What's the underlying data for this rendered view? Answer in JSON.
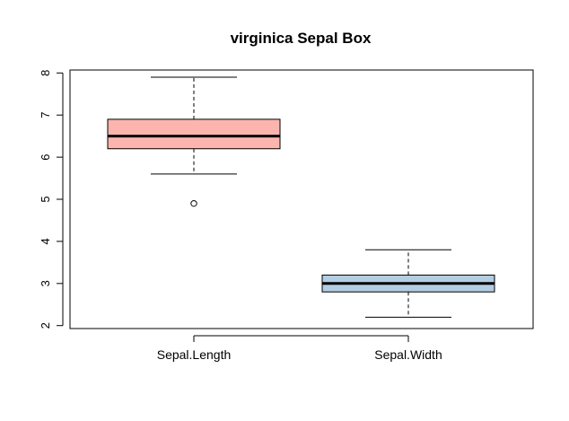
{
  "chart_data": {
    "type": "box",
    "title": "virginica Sepal Box",
    "xlabel": "",
    "ylabel": "",
    "ylim": [
      1.93,
      8.07
    ],
    "yticks": [
      2,
      3,
      4,
      5,
      6,
      7,
      8
    ],
    "grid": false,
    "legend": "none",
    "categories": [
      "Sepal.Length",
      "Sepal.Width"
    ],
    "boxes": [
      {
        "name": "Sepal.Length",
        "color": "#FBB4AE",
        "whisker_low": 5.6,
        "q1": 6.2,
        "median": 6.5,
        "q3": 6.9,
        "whisker_high": 7.9,
        "outliers": [
          4.9
        ]
      },
      {
        "name": "Sepal.Width",
        "color": "#B3CDE3",
        "whisker_low": 2.2,
        "q1": 2.8,
        "median": 3.0,
        "q3": 3.2,
        "whisker_high": 3.8,
        "outliers": []
      }
    ]
  }
}
